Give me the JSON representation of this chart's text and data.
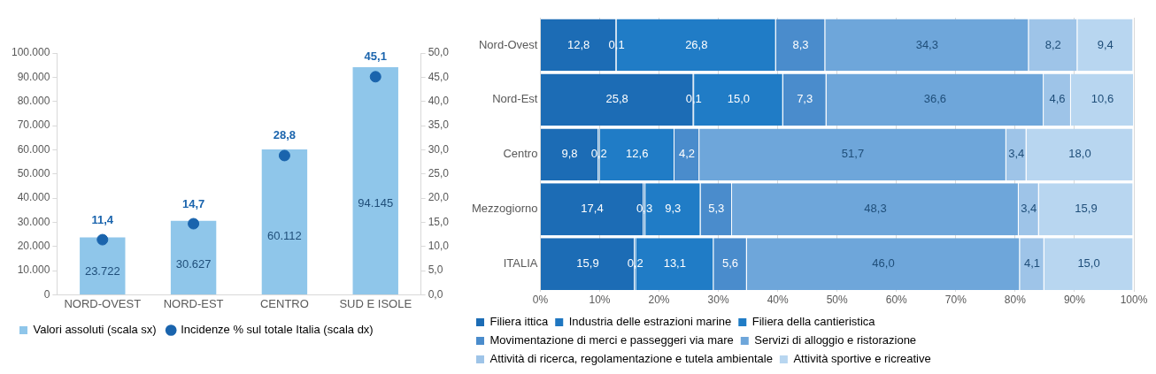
{
  "chart_data": [
    {
      "type": "bar",
      "categories": [
        "NORD-OVEST",
        "NORD-EST",
        "CENTRO",
        "SUD E ISOLE"
      ],
      "series": [
        {
          "name": "Valori assoluti (scala sx)",
          "color": "#8fc6ea",
          "values": [
            23722,
            30627,
            60112,
            94145
          ],
          "value_labels": [
            "23.722",
            "30.627",
            "60.112",
            "94.145"
          ]
        },
        {
          "name": "Incidenze % sul totale Italia (scala dx)",
          "type": "scatter",
          "axis": "y2",
          "color": "#1a64ad",
          "values": [
            11.4,
            14.7,
            28.8,
            45.1
          ],
          "value_labels": [
            "11,4",
            "14,7",
            "28,8",
            "45,1"
          ]
        }
      ],
      "ylim": [
        0,
        100000
      ],
      "yticks": [
        {
          "value": 0,
          "label": "0"
        },
        {
          "value": 10000,
          "label": "10.000"
        },
        {
          "value": 20000,
          "label": "20.000"
        },
        {
          "value": 30000,
          "label": "30.000"
        },
        {
          "value": 40000,
          "label": "40.000"
        },
        {
          "value": 50000,
          "label": "50.000"
        },
        {
          "value": 60000,
          "label": "60.000"
        },
        {
          "value": 70000,
          "label": "70.000"
        },
        {
          "value": 80000,
          "label": "80.000"
        },
        {
          "value": 90000,
          "label": "90.000"
        },
        {
          "value": 100000,
          "label": "100.000"
        }
      ],
      "y2lim": [
        0,
        50
      ],
      "y2ticks": [
        {
          "value": 0,
          "label": "0,0"
        },
        {
          "value": 5,
          "label": "5,0"
        },
        {
          "value": 10,
          "label": "10,0"
        },
        {
          "value": 15,
          "label": "15,0"
        },
        {
          "value": 20,
          "label": "20,0"
        },
        {
          "value": 25,
          "label": "25,0"
        },
        {
          "value": 30,
          "label": "30,0"
        },
        {
          "value": 35,
          "label": "35,0"
        },
        {
          "value": 40,
          "label": "40,0"
        },
        {
          "value": 45,
          "label": "45,0"
        },
        {
          "value": 50,
          "label": "50,0"
        }
      ],
      "marker": "circle",
      "grid": false,
      "legend": "bottom"
    },
    {
      "type": "bar",
      "orientation": "horizontal",
      "stacked": true,
      "categories": [
        "Nord-Ovest",
        "Nord-Est",
        "Centro",
        "Mezzogiorno",
        "ITALIA"
      ],
      "series": [
        {
          "name": "Filiera ittica",
          "color": "#1c6cb5",
          "values": [
            12.8,
            25.8,
            9.8,
            17.4,
            15.9
          ],
          "value_labels": [
            "12,8",
            "25,8",
            "9,8",
            "17,4",
            "15,9"
          ]
        },
        {
          "name": "Industria delle estrazioni marine",
          "color": "#1f76c0",
          "values": [
            0.1,
            0.1,
            0.2,
            0.3,
            0.2
          ],
          "value_labels": [
            "0,1",
            "0,1",
            "0,2",
            "0,3",
            "0,2"
          ]
        },
        {
          "name": "Filiera della cantieristica",
          "color": "#207cc6",
          "values": [
            26.8,
            15.0,
            12.6,
            9.3,
            13.1
          ],
          "value_labels": [
            "26,8",
            "15,0",
            "12,6",
            "9,3",
            "13,1"
          ]
        },
        {
          "name": "Movimentazione di merci e passeggeri via mare",
          "color": "#4a8ccc",
          "values": [
            8.3,
            7.3,
            4.2,
            5.3,
            5.6
          ],
          "value_labels": [
            "8,3",
            "7,3",
            "4,2",
            "5,3",
            "5,6"
          ]
        },
        {
          "name": "Servizi di alloggio e ristorazione",
          "color": "#6ea6da",
          "values": [
            34.3,
            36.6,
            51.7,
            48.3,
            46.0
          ],
          "value_labels": [
            "34,3",
            "36,6",
            "51,7",
            "48,3",
            "46,0"
          ]
        },
        {
          "name": "Attività di ricerca, regolamentazione e tutela ambientale",
          "color": "#9ec4e8",
          "values": [
            8.2,
            4.6,
            3.4,
            3.4,
            4.1
          ],
          "value_labels": [
            "8,2",
            "4,6",
            "3,4",
            "3,4",
            "4,1"
          ]
        },
        {
          "name": "Attività sportive e ricreative",
          "color": "#b8d6f0",
          "values": [
            9.4,
            10.6,
            18.0,
            15.9,
            15.0
          ],
          "value_labels": [
            "9,4",
            "10,6",
            "18,0",
            "15,9",
            "15,0"
          ]
        }
      ],
      "xlim": [
        0,
        100
      ],
      "xticks": [
        {
          "value": 0,
          "label": "0%"
        },
        {
          "value": 10,
          "label": "10%"
        },
        {
          "value": 20,
          "label": "20%"
        },
        {
          "value": 30,
          "label": "30%"
        },
        {
          "value": 40,
          "label": "40%"
        },
        {
          "value": 50,
          "label": "50%"
        },
        {
          "value": 60,
          "label": "60%"
        },
        {
          "value": 70,
          "label": "70%"
        },
        {
          "value": 80,
          "label": "80%"
        },
        {
          "value": 90,
          "label": "90%"
        },
        {
          "value": 100,
          "label": "100%"
        }
      ],
      "grid": "x",
      "legend": "bottom"
    }
  ]
}
